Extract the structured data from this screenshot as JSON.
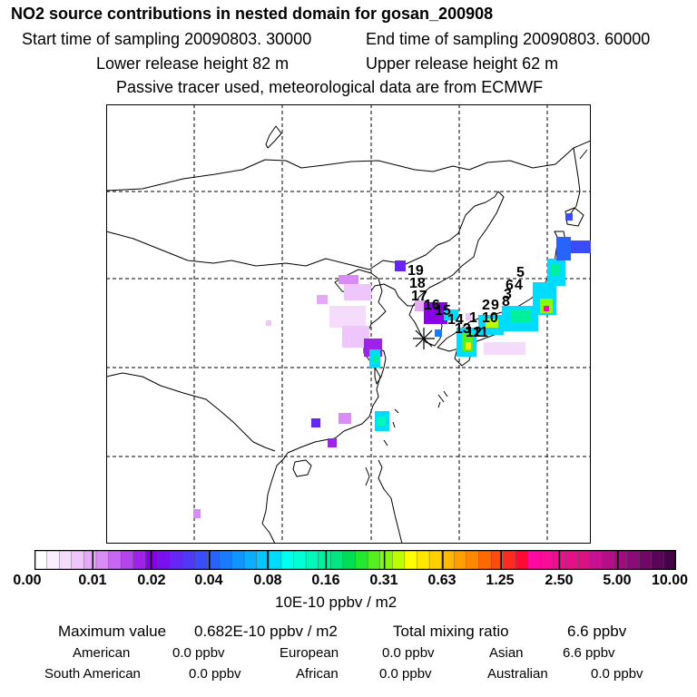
{
  "header": {
    "title": "NO2 source contributions in nested domain for gosan_200908",
    "start_label": "Start time of sampling 20090803. 30000",
    "end_label": "End time of sampling 20090803. 60000",
    "lower_label": "Lower release height   82 m",
    "upper_label": "Upper release height   62 m",
    "tracer_note": "Passive tracer used, meteorological data are from ECMWF"
  },
  "map": {
    "receptor_marker": "asterisk-receptor-icon",
    "source_labels": [
      "19",
      "18",
      "17",
      "16",
      "15",
      "14",
      "13",
      "12",
      "11",
      "10",
      "5",
      "6",
      "4",
      "3",
      "2",
      "9",
      "8",
      "1"
    ],
    "coastline_color": "#000000",
    "grid_style": "dashed"
  },
  "colorbar": {
    "ticks": [
      "0.00",
      "0.01",
      "0.02",
      "0.04",
      "0.08",
      "0.16",
      "0.31",
      "0.63",
      "1.25",
      "2.50",
      "5.00",
      "10.00"
    ],
    "colors": [
      "#ffffff",
      "#fbeefe",
      "#f6dcfc",
      "#efc6fb",
      "#e6a8f8",
      "#d98cf6",
      "#c868f2",
      "#b444ee",
      "#9f22ea",
      "#8a00e6",
      "#7a10f0",
      "#6626f5",
      "#5038f8",
      "#3a4cfb",
      "#2863fd",
      "#1a7aff",
      "#1294ff",
      "#0caeff",
      "#06c6ff",
      "#00dcff",
      "#00ffee",
      "#00ffd4",
      "#00f8b8",
      "#00f09c",
      "#00e680",
      "#00dd55",
      "#22e830",
      "#55f020",
      "#88f810",
      "#bbff00",
      "#ffff00",
      "#ffe800",
      "#ffd000",
      "#ffb800",
      "#ffa000",
      "#ff8800",
      "#ff6a00",
      "#ff4a10",
      "#ff2a20",
      "#ff0a30",
      "#ff0aa0",
      "#f80c98",
      "#ee0e90",
      "#e41088",
      "#d81280",
      "#c81090",
      "#b40e88",
      "#a00c80",
      "#8a0a78",
      "#700868",
      "#5a0658",
      "#440448"
    ],
    "unit_label": "10E-10 ppbv / m2"
  },
  "summary": {
    "max_label": "Maximum value",
    "max_value": "0.682E-10 ppbv / m2",
    "total_label": "Total mixing ratio",
    "total_value": "6.6 ppbv",
    "regions": [
      {
        "name": "American",
        "value": "0.0 ppbv"
      },
      {
        "name": "European",
        "value": "0.0 ppbv"
      },
      {
        "name": "Asian",
        "value": "6.6 ppbv"
      },
      {
        "name": "South American",
        "value": "0.0 ppbv"
      },
      {
        "name": "African",
        "value": "0.0 ppbv"
      },
      {
        "name": "Australian",
        "value": "0.0 ppbv"
      }
    ]
  }
}
